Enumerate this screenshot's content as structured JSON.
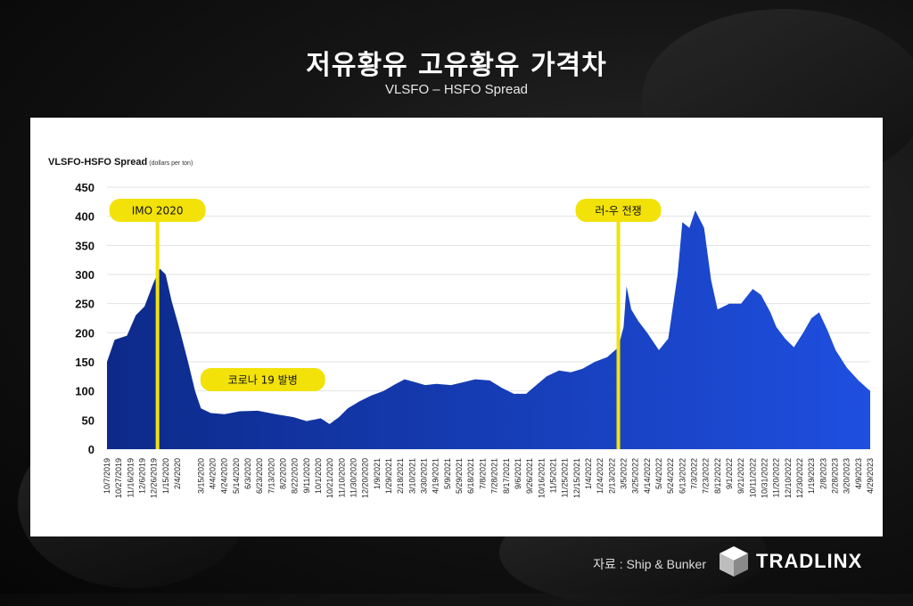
{
  "header": {
    "title": "저유황유 고유황유 가격차",
    "subtitle": "VLSFO – HSFO Spread"
  },
  "footer": {
    "source": "자료 : Ship & Bunker",
    "brand": "TRADLINX"
  },
  "colors": {
    "fill_top": "#0d2a8a",
    "fill_bottom": "#1f4fe0",
    "marker": "#f2e20a",
    "label_bg": "#f2e20a"
  },
  "chart_data": {
    "type": "area",
    "title": "VLSFO-HSFO Spread",
    "ylabel": "(dollars per ton)",
    "xlabel": "",
    "ylim": [
      0,
      450
    ],
    "yticks": [
      0,
      50,
      100,
      150,
      200,
      250,
      300,
      350,
      400,
      450
    ],
    "grid": true,
    "xticks": [
      "10/7/2019",
      "10/27/2019",
      "11/16/2019",
      "12/6/2019",
      "12/26/2019",
      "1/15/2020",
      "2/4/2020",
      "3/15/2020",
      "4/4/2020",
      "4/24/2020",
      "5/14/2020",
      "6/3/2020",
      "6/23/2020",
      "7/13/2020",
      "8/2/2020",
      "8/22/2020",
      "9/11/2020",
      "10/1/2020",
      "10/21/2020",
      "11/10/2020",
      "11/30/2020",
      "12/20/2020",
      "1/9/2021",
      "1/29/2021",
      "2/18/2021",
      "3/10/2021",
      "3/30/2021",
      "4/19/2021",
      "5/9/2021",
      "5/29/2021",
      "6/18/2021",
      "7/8/2021",
      "7/28/2021",
      "8/17/2021",
      "9/6/2021",
      "9/26/2021",
      "10/16/2021",
      "11/5/2021",
      "11/25/2021",
      "12/15/2021",
      "1/4/2022",
      "1/24/2022",
      "2/13/2022",
      "3/5/2022",
      "3/25/2022",
      "4/14/2022",
      "5/4/2022",
      "5/24/2022",
      "6/13/2022",
      "7/3/2022",
      "7/23/2022",
      "8/12/2022",
      "9/1/2022",
      "9/21/2022",
      "10/11/2022",
      "10/31/2022",
      "11/20/2022",
      "12/10/2022",
      "12/30/2022",
      "1/19/2023",
      "2/8/2023",
      "2/28/2023",
      "3/20/2023",
      "4/9/2023",
      "4/29/2023"
    ],
    "x_start": "10/7/2019",
    "x_end": "4/29/2023",
    "points": [
      {
        "x": "10/7/2019",
        "y": 150
      },
      {
        "x": "10/20/2019",
        "y": 188
      },
      {
        "x": "11/10/2019",
        "y": 195
      },
      {
        "x": "11/25/2019",
        "y": 230
      },
      {
        "x": "12/10/2019",
        "y": 245
      },
      {
        "x": "12/25/2019",
        "y": 285
      },
      {
        "x": "1/5/2020",
        "y": 310
      },
      {
        "x": "1/15/2020",
        "y": 300
      },
      {
        "x": "1/25/2020",
        "y": 255
      },
      {
        "x": "2/8/2020",
        "y": 205
      },
      {
        "x": "2/22/2020",
        "y": 150
      },
      {
        "x": "3/5/2020",
        "y": 100
      },
      {
        "x": "3/15/2020",
        "y": 70
      },
      {
        "x": "4/1/2020",
        "y": 62
      },
      {
        "x": "4/24/2020",
        "y": 60
      },
      {
        "x": "5/20/2020",
        "y": 65
      },
      {
        "x": "6/20/2020",
        "y": 66
      },
      {
        "x": "7/20/2020",
        "y": 60
      },
      {
        "x": "8/20/2020",
        "y": 55
      },
      {
        "x": "9/11/2020",
        "y": 48
      },
      {
        "x": "10/5/2020",
        "y": 53
      },
      {
        "x": "10/20/2020",
        "y": 43
      },
      {
        "x": "11/5/2020",
        "y": 55
      },
      {
        "x": "11/20/2020",
        "y": 70
      },
      {
        "x": "12/10/2020",
        "y": 82
      },
      {
        "x": "12/30/2020",
        "y": 92
      },
      {
        "x": "1/20/2021",
        "y": 100
      },
      {
        "x": "2/10/2021",
        "y": 112
      },
      {
        "x": "2/25/2021",
        "y": 120
      },
      {
        "x": "3/15/2021",
        "y": 115
      },
      {
        "x": "4/1/2021",
        "y": 110
      },
      {
        "x": "4/20/2021",
        "y": 112
      },
      {
        "x": "5/15/2021",
        "y": 110
      },
      {
        "x": "6/5/2021",
        "y": 115
      },
      {
        "x": "6/25/2021",
        "y": 120
      },
      {
        "x": "7/20/2021",
        "y": 118
      },
      {
        "x": "8/10/2021",
        "y": 105
      },
      {
        "x": "8/30/2021",
        "y": 95
      },
      {
        "x": "9/20/2021",
        "y": 95
      },
      {
        "x": "10/5/2021",
        "y": 108
      },
      {
        "x": "10/25/2021",
        "y": 125
      },
      {
        "x": "11/15/2021",
        "y": 135
      },
      {
        "x": "12/5/2021",
        "y": 132
      },
      {
        "x": "12/25/2021",
        "y": 138
      },
      {
        "x": "1/15/2022",
        "y": 150
      },
      {
        "x": "2/5/2022",
        "y": 158
      },
      {
        "x": "2/24/2022",
        "y": 175
      },
      {
        "x": "3/5/2022",
        "y": 210
      },
      {
        "x": "3/10/2022",
        "y": 280
      },
      {
        "x": "3/18/2022",
        "y": 240
      },
      {
        "x": "3/30/2022",
        "y": 220
      },
      {
        "x": "4/14/2022",
        "y": 200
      },
      {
        "x": "5/4/2022",
        "y": 170
      },
      {
        "x": "5/20/2022",
        "y": 190
      },
      {
        "x": "6/5/2022",
        "y": 300
      },
      {
        "x": "6/13/2022",
        "y": 390
      },
      {
        "x": "6/25/2022",
        "y": 380
      },
      {
        "x": "7/5/2022",
        "y": 410
      },
      {
        "x": "7/20/2022",
        "y": 380
      },
      {
        "x": "8/1/2022",
        "y": 290
      },
      {
        "x": "8/12/2022",
        "y": 240
      },
      {
        "x": "9/1/2022",
        "y": 250
      },
      {
        "x": "9/21/2022",
        "y": 250
      },
      {
        "x": "10/11/2022",
        "y": 275
      },
      {
        "x": "10/25/2022",
        "y": 265
      },
      {
        "x": "11/10/2022",
        "y": 235
      },
      {
        "x": "11/20/2022",
        "y": 210
      },
      {
        "x": "12/5/2022",
        "y": 190
      },
      {
        "x": "12/20/2022",
        "y": 175
      },
      {
        "x": "1/5/2023",
        "y": 200
      },
      {
        "x": "1/19/2023",
        "y": 225
      },
      {
        "x": "2/1/2023",
        "y": 235
      },
      {
        "x": "2/15/2023",
        "y": 205
      },
      {
        "x": "3/1/2023",
        "y": 170
      },
      {
        "x": "3/20/2023",
        "y": 140
      },
      {
        "x": "4/9/2023",
        "y": 118
      },
      {
        "x": "4/29/2023",
        "y": 100
      }
    ],
    "annotations": [
      {
        "label": "IMO 2020",
        "x": "1/1/2020",
        "type": "vline"
      },
      {
        "label": "러-우 전쟁",
        "x": "2/24/2022",
        "type": "vline"
      },
      {
        "label": "코로나 19 발병",
        "x": "6/1/2020",
        "type": "label"
      }
    ]
  }
}
